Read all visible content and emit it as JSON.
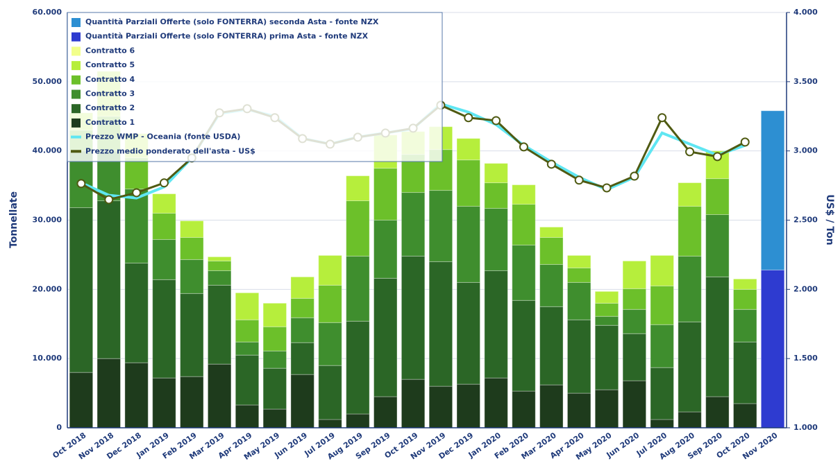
{
  "chart_data": {
    "type": "bar",
    "stacked": true,
    "categories": [
      "Oct 2018",
      "Nov 2018",
      "Dec 2018",
      "Jan 2019",
      "Feb 2019",
      "Mar 2019",
      "Apr 2019",
      "May 2019",
      "Jun 2019",
      "Jul 2019",
      "Aug 2019",
      "Sep 2019",
      "Oct 2019",
      "Nov 2019",
      "Dec 2019",
      "Jan 2020",
      "Feb 2020",
      "Mar 2020",
      "Apr 2020",
      "May 2020",
      "Jun 2020",
      "Jul 2020",
      "Aug 2020",
      "Sep 2020",
      "Oct 2020",
      "Nov 2020"
    ],
    "ylabel": "Tonnellate",
    "y2label": "US$ / Ton",
    "ylim": [
      0,
      60000
    ],
    "yticks": [
      {
        "value": 0,
        "label": "0"
      },
      {
        "value": 10000,
        "label": "10.000"
      },
      {
        "value": 20000,
        "label": "20.000"
      },
      {
        "value": 30000,
        "label": "30.000"
      },
      {
        "value": 40000,
        "label": "40.000"
      },
      {
        "value": 50000,
        "label": "50.000"
      },
      {
        "value": 60000,
        "label": "60.000"
      }
    ],
    "y2lim": [
      1000,
      4000
    ],
    "y2ticks": [
      {
        "value": 1000,
        "label": "1.000"
      },
      {
        "value": 1500,
        "label": "1.500"
      },
      {
        "value": 2000,
        "label": "2.000"
      },
      {
        "value": 2500,
        "label": "2.500"
      },
      {
        "value": 3000,
        "label": "3.000"
      },
      {
        "value": 3500,
        "label": "3.500"
      },
      {
        "value": 4000,
        "label": "4.000"
      }
    ],
    "grid": true,
    "legend": "top-left",
    "series": [
      {
        "name": "Contratto 1",
        "type": "bar",
        "color": "#1e3b1c",
        "values": [
          8000,
          10000,
          9400,
          7200,
          7400,
          9200,
          3300,
          2700,
          7700,
          1200,
          2000,
          4500,
          7000,
          6000,
          6300,
          7200,
          5300,
          6200,
          5000,
          5500,
          6800,
          1200,
          2300,
          4500,
          3500,
          null
        ]
      },
      {
        "name": "Contratto 2",
        "type": "bar",
        "color": "#2b6626",
        "values": [
          23800,
          22800,
          14400,
          14200,
          12000,
          11400,
          7200,
          5900,
          4600,
          7800,
          13400,
          17100,
          17800,
          18000,
          14700,
          15500,
          13100,
          11300,
          10600,
          9300,
          6800,
          7500,
          13000,
          17300,
          8900,
          null
        ]
      },
      {
        "name": "Contratto 3",
        "type": "bar",
        "color": "#3f8e2e",
        "values": [
          8200,
          7200,
          10700,
          5800,
          4900,
          2100,
          1900,
          2500,
          3600,
          6200,
          9400,
          8400,
          9200,
          10300,
          11000,
          9000,
          8000,
          6100,
          5400,
          1300,
          3500,
          6200,
          9500,
          9000,
          4700,
          null
        ]
      },
      {
        "name": "Contratto 4",
        "type": "bar",
        "color": "#6cc02a",
        "values": [
          3000,
          5000,
          4500,
          3800,
          3200,
          1400,
          3200,
          3500,
          2800,
          5400,
          8000,
          7500,
          5500,
          5900,
          6700,
          3700,
          5900,
          3900,
          2100,
          1900,
          3000,
          5600,
          7200,
          5200,
          2900,
          null
        ]
      },
      {
        "name": "Contratto 5",
        "type": "bar",
        "color": "#b6ee3c",
        "values": [
          2500,
          6500,
          3500,
          2800,
          2400,
          600,
          3900,
          3400,
          3100,
          4300,
          3600,
          4800,
          3300,
          3300,
          3100,
          2800,
          2800,
          1500,
          1800,
          1700,
          4000,
          4400,
          3400,
          4000,
          1500,
          null
        ]
      },
      {
        "name": "Contratto 6",
        "type": "bar",
        "color": "#f2ff8a",
        "values": [
          0,
          0,
          0,
          0,
          0,
          0,
          0,
          0,
          0,
          0,
          0,
          0,
          0,
          0,
          0,
          0,
          0,
          0,
          0,
          0,
          0,
          0,
          0,
          0,
          0,
          null
        ]
      },
      {
        "name": "Quantità Parziali Offerte (solo FONTERRA) prima Asta - fonte NZX",
        "type": "bar",
        "color": "#2e3bd0",
        "values": [
          null,
          null,
          null,
          null,
          null,
          null,
          null,
          null,
          null,
          null,
          null,
          null,
          null,
          null,
          null,
          null,
          null,
          null,
          null,
          null,
          null,
          null,
          null,
          null,
          null,
          22800
        ]
      },
      {
        "name": "Quantità Parziali Offerte (solo FONTERRA) seconda Asta - fonte NZX",
        "type": "bar",
        "color": "#2d8fd2",
        "values": [
          null,
          null,
          null,
          null,
          null,
          null,
          null,
          null,
          null,
          null,
          null,
          null,
          null,
          null,
          null,
          null,
          null,
          null,
          null,
          null,
          null,
          null,
          null,
          null,
          null,
          23000
        ]
      },
      {
        "name": "Prezzo WMP - Oceania (fonte USDA)",
        "type": "line",
        "axis": "y2",
        "color": "#5fe6f2",
        "values": [
          2770,
          2680,
          2660,
          2740,
          2950,
          3270,
          3300,
          3250,
          3090,
          3050,
          3100,
          3130,
          3160,
          3340,
          3280,
          3190,
          3040,
          2920,
          2810,
          2720,
          2810,
          3130,
          3050,
          2970,
          3040,
          null
        ]
      },
      {
        "name": "Prezzo medio ponderato dell'asta - US$",
        "type": "line",
        "axis": "y2",
        "color": "#4f5a12",
        "markers": true,
        "values": [
          2764,
          2648,
          2698,
          2769,
          2949,
          3275,
          3305,
          3240,
          3089,
          3049,
          3099,
          3129,
          3164,
          3330,
          3240,
          3219,
          3029,
          2904,
          2789,
          2733,
          2818,
          3240,
          2994,
          2959,
          3064,
          null
        ]
      }
    ]
  }
}
